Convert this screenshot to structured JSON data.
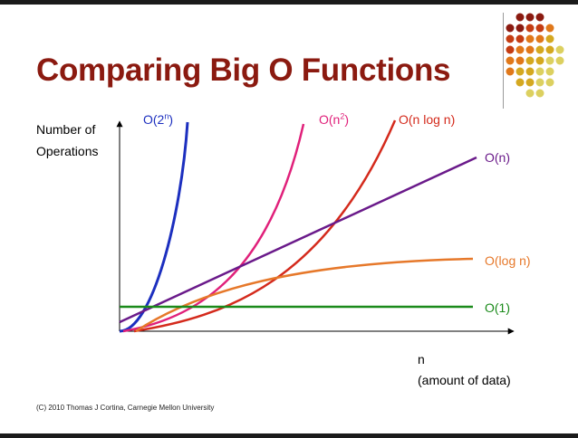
{
  "slide": {
    "title": "Comparing Big O Functions",
    "y_axis_label_line1": "Number of",
    "y_axis_label_line2": "Operations",
    "x_axis_label_line1": "n",
    "x_axis_label_line2": "(amount of data)",
    "copyright": "(C) 2010 Thomas J Cortina, Carnegie Mellon University"
  },
  "labels": {
    "exp_base": "O(2",
    "exp_sup": "n",
    "exp_close": ")",
    "quad_base": "O(n",
    "quad_sup": "2",
    "quad_close": ")",
    "nlogn": "O(n log n)",
    "linear": "O(n)",
    "log": "O(log n)",
    "const": "O(1)"
  },
  "colors": {
    "title": "#8b1a10",
    "exp": "#1c2fbf",
    "quad": "#e0207a",
    "nlogn": "#d42a1c",
    "linear": "#6a1a8a",
    "log": "#e6782a",
    "const": "#1a8a1a"
  },
  "decoration": {
    "dot_colors": [
      "#8b1a10",
      "#c43c12",
      "#e0781a",
      "#d4a820",
      "#dcd060"
    ]
  }
}
